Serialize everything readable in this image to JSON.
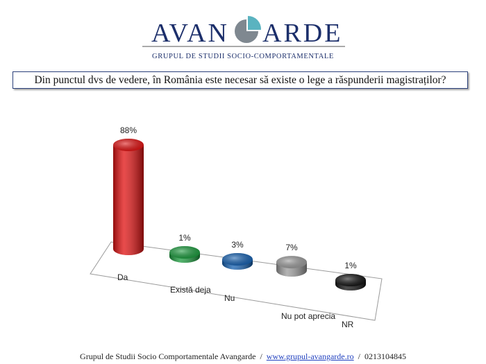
{
  "brand": {
    "name_left": "AVAN",
    "name_right": "ARDE",
    "subtitle": "GRUPUL DE STUDII SOCIO-COMPORTAMENTALE"
  },
  "question": "Din punctul dvs de vedere, în România este necesar să existe o lege a răspunderii magistraților?",
  "chart_data": {
    "type": "bar",
    "categories": [
      "Da",
      "Există deja",
      "Nu",
      "Nu pot aprecia",
      "NR"
    ],
    "values": [
      88,
      1,
      3,
      7,
      1
    ],
    "value_labels": [
      "88%",
      "1%",
      "3%",
      "7%",
      "1%"
    ],
    "colors": [
      "#e01010",
      "#1a9a3c",
      "#1560b0",
      "#9a9a9a",
      "#111111"
    ],
    "grid": false,
    "legend": "none"
  },
  "footer": {
    "org": "Grupul de Studii Socio Comportamentale Avangarde",
    "url": "www.grupul-avangarde.ro",
    "phone": "0213104845"
  }
}
